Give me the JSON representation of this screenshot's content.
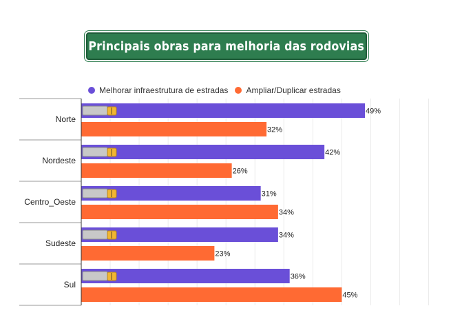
{
  "title": "Principais obras para melhoria das rodovias",
  "chart_data": {
    "type": "bar",
    "orientation": "horizontal",
    "categories": [
      "Norte",
      "Nordeste",
      "Centro_Oeste",
      "Sudeste",
      "Sul"
    ],
    "series": [
      {
        "name": "Melhorar infraestrutura de estradas",
        "color": "#6a4fd8",
        "values": [
          49,
          42,
          31,
          34,
          36
        ]
      },
      {
        "name": "Ampliar/Duplicar estradas",
        "color": "#ff6a33",
        "values": [
          32,
          26,
          34,
          23,
          45
        ]
      }
    ],
    "value_suffix": "%",
    "xlim": [
      0,
      60
    ],
    "grid": true,
    "legend_position": "top",
    "bar_icon": "truck-icon"
  }
}
